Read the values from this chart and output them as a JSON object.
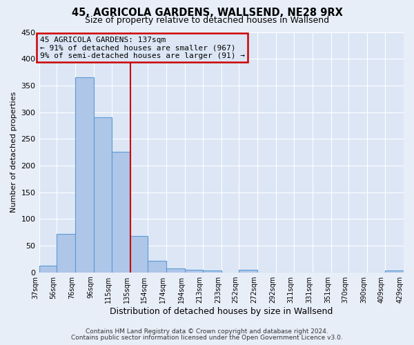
{
  "title": "45, AGRICOLA GARDENS, WALLSEND, NE28 9RX",
  "subtitle": "Size of property relative to detached houses in Wallsend",
  "xlabel": "Distribution of detached houses by size in Wallsend",
  "ylabel": "Number of detached properties",
  "bin_edges": [
    37,
    56,
    76,
    96,
    115,
    135,
    154,
    174,
    194,
    213,
    233,
    252,
    272,
    292,
    311,
    331,
    351,
    370,
    390,
    409,
    429
  ],
  "bar_heights": [
    13,
    72,
    365,
    290,
    226,
    68,
    22,
    7,
    5,
    3,
    0,
    4,
    0,
    0,
    0,
    0,
    0,
    0,
    0,
    3
  ],
  "bar_color": "#aec6e8",
  "bar_edge_color": "#5b9bd5",
  "vline_x": 135,
  "vline_color": "#cc0000",
  "annotation_title": "45 AGRICOLA GARDENS: 137sqm",
  "annotation_line1": "← 91% of detached houses are smaller (967)",
  "annotation_line2": "9% of semi-detached houses are larger (91) →",
  "annotation_box_color": "#cc0000",
  "ylim": [
    0,
    450
  ],
  "yticks": [
    0,
    50,
    100,
    150,
    200,
    250,
    300,
    350,
    400,
    450
  ],
  "tick_labels": [
    "37sqm",
    "56sqm",
    "76sqm",
    "96sqm",
    "115sqm",
    "135sqm",
    "154sqm",
    "174sqm",
    "194sqm",
    "213sqm",
    "233sqm",
    "252sqm",
    "272sqm",
    "292sqm",
    "311sqm",
    "331sqm",
    "351sqm",
    "370sqm",
    "390sqm",
    "409sqm",
    "429sqm"
  ],
  "footer_line1": "Contains HM Land Registry data © Crown copyright and database right 2024.",
  "footer_line2": "Contains public sector information licensed under the Open Government Licence v3.0.",
  "background_color": "#e8eef8",
  "plot_bg_color": "#dce6f5",
  "grid_color": "#ffffff"
}
